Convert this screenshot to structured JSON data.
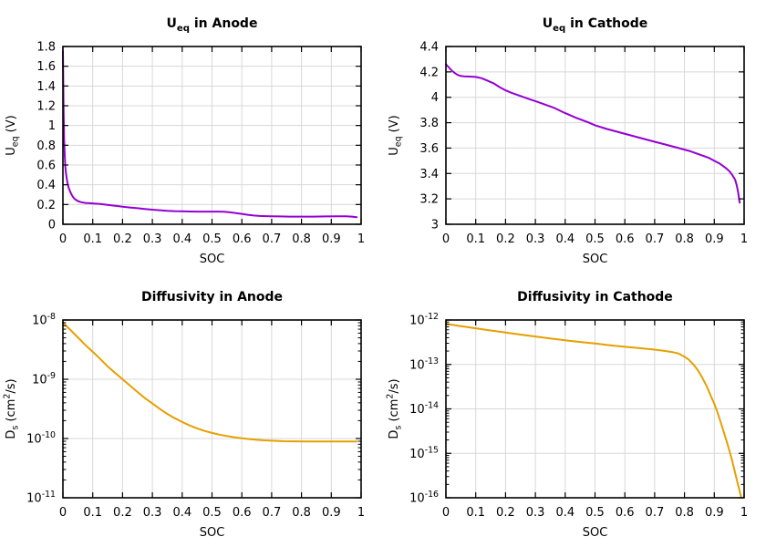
{
  "figure": {
    "background": "#ffffff",
    "grid_color": "#d8d8d8",
    "axis_color": "#000000",
    "text_color": "#000000",
    "ocp_line_color": "#9400D3",
    "diffusivity_line_color": "#E69F00"
  },
  "chart_data": [
    {
      "id": "ueq-anode",
      "type": "line",
      "title": "U_eq in Anode",
      "title_segments": [
        {
          "t": "U"
        },
        {
          "t": "eq",
          "sub": true
        },
        {
          "t": " in Anode"
        }
      ],
      "xlabel": "SOC",
      "ylabel": "U_eq (V)",
      "ylabel_segments": [
        {
          "t": "U"
        },
        {
          "t": "eq",
          "sub": true
        },
        {
          "t": " (V)"
        }
      ],
      "line_color": "#9400D3",
      "y_scale": "linear",
      "grid": true,
      "legend": "none",
      "xlim": [
        0,
        1
      ],
      "ylim": [
        0,
        1.8
      ],
      "x_ticks": [
        "0",
        "0.1",
        "0.2",
        "0.3",
        "0.4",
        "0.5",
        "0.6",
        "0.7",
        "0.8",
        "0.9",
        "1"
      ],
      "y_ticks": [
        "0",
        "0.2",
        "0.4",
        "0.6",
        "0.8",
        "1",
        "1.2",
        "1.4",
        "1.6",
        "1.8"
      ],
      "points": [
        [
          0,
          1.75
        ],
        [
          0.002,
          1.18
        ],
        [
          0.004,
          0.86
        ],
        [
          0.006,
          0.7
        ],
        [
          0.008,
          0.59
        ],
        [
          0.01,
          0.52
        ],
        [
          0.013,
          0.455
        ],
        [
          0.016,
          0.41
        ],
        [
          0.02,
          0.365
        ],
        [
          0.025,
          0.325
        ],
        [
          0.03,
          0.295
        ],
        [
          0.035,
          0.272
        ],
        [
          0.04,
          0.255
        ],
        [
          0.05,
          0.235
        ],
        [
          0.06,
          0.224
        ],
        [
          0.075,
          0.216
        ],
        [
          0.09,
          0.213
        ],
        [
          0.105,
          0.21
        ],
        [
          0.125,
          0.205
        ],
        [
          0.15,
          0.196
        ],
        [
          0.175,
          0.187
        ],
        [
          0.2,
          0.178
        ],
        [
          0.225,
          0.17
        ],
        [
          0.25,
          0.162
        ],
        [
          0.275,
          0.155
        ],
        [
          0.3,
          0.148
        ],
        [
          0.325,
          0.142
        ],
        [
          0.35,
          0.137
        ],
        [
          0.375,
          0.133
        ],
        [
          0.4,
          0.131
        ],
        [
          0.425,
          0.129
        ],
        [
          0.45,
          0.128
        ],
        [
          0.475,
          0.128
        ],
        [
          0.5,
          0.128
        ],
        [
          0.52,
          0.128
        ],
        [
          0.54,
          0.126
        ],
        [
          0.56,
          0.121
        ],
        [
          0.58,
          0.113
        ],
        [
          0.6,
          0.105
        ],
        [
          0.62,
          0.096
        ],
        [
          0.64,
          0.089
        ],
        [
          0.66,
          0.084
        ],
        [
          0.68,
          0.082
        ],
        [
          0.7,
          0.08
        ],
        [
          0.73,
          0.079
        ],
        [
          0.76,
          0.078
        ],
        [
          0.8,
          0.078
        ],
        [
          0.84,
          0.078
        ],
        [
          0.88,
          0.079
        ],
        [
          0.92,
          0.08
        ],
        [
          0.95,
          0.08
        ],
        [
          0.97,
          0.078
        ],
        [
          0.985,
          0.071
        ]
      ]
    },
    {
      "id": "ueq-cathode",
      "type": "line",
      "title": "U_eq in Cathode",
      "title_segments": [
        {
          "t": "U"
        },
        {
          "t": "eq",
          "sub": true
        },
        {
          "t": " in Cathode"
        }
      ],
      "xlabel": "SOC",
      "ylabel": "U_eq (V)",
      "ylabel_segments": [
        {
          "t": "U"
        },
        {
          "t": "eq",
          "sub": true
        },
        {
          "t": " (V)"
        }
      ],
      "line_color": "#9400D3",
      "y_scale": "linear",
      "grid": true,
      "legend": "none",
      "xlim": [
        0,
        1
      ],
      "ylim": [
        3,
        4.4
      ],
      "x_ticks": [
        "0",
        "0.1",
        "0.2",
        "0.3",
        "0.4",
        "0.5",
        "0.6",
        "0.7",
        "0.8",
        "0.9",
        "1"
      ],
      "y_ticks": [
        "3",
        "3.2",
        "3.4",
        "3.6",
        "3.8",
        "4",
        "4.2",
        "4.4"
      ],
      "points": [
        [
          0,
          4.26
        ],
        [
          0.01,
          4.235
        ],
        [
          0.02,
          4.21
        ],
        [
          0.03,
          4.19
        ],
        [
          0.04,
          4.175
        ],
        [
          0.05,
          4.168
        ],
        [
          0.06,
          4.165
        ],
        [
          0.08,
          4.163
        ],
        [
          0.1,
          4.16
        ],
        [
          0.12,
          4.15
        ],
        [
          0.14,
          4.13
        ],
        [
          0.16,
          4.11
        ],
        [
          0.18,
          4.08
        ],
        [
          0.2,
          4.055
        ],
        [
          0.22,
          4.035
        ],
        [
          0.25,
          4.01
        ],
        [
          0.28,
          3.985
        ],
        [
          0.3,
          3.97
        ],
        [
          0.33,
          3.945
        ],
        [
          0.36,
          3.92
        ],
        [
          0.4,
          3.875
        ],
        [
          0.44,
          3.835
        ],
        [
          0.48,
          3.8
        ],
        [
          0.5,
          3.78
        ],
        [
          0.54,
          3.75
        ],
        [
          0.58,
          3.725
        ],
        [
          0.62,
          3.7
        ],
        [
          0.66,
          3.675
        ],
        [
          0.7,
          3.65
        ],
        [
          0.74,
          3.625
        ],
        [
          0.78,
          3.6
        ],
        [
          0.82,
          3.575
        ],
        [
          0.85,
          3.55
        ],
        [
          0.88,
          3.525
        ],
        [
          0.9,
          3.5
        ],
        [
          0.92,
          3.475
        ],
        [
          0.94,
          3.44
        ],
        [
          0.95,
          3.42
        ],
        [
          0.96,
          3.39
        ],
        [
          0.97,
          3.35
        ],
        [
          0.975,
          3.31
        ],
        [
          0.98,
          3.25
        ],
        [
          0.985,
          3.17
        ]
      ]
    },
    {
      "id": "diffusivity-anode",
      "type": "line",
      "title": "Diffusivity in Anode",
      "title_segments": [
        {
          "t": "Diffusivity in Anode"
        }
      ],
      "xlabel": "SOC",
      "ylabel": "D_s (cm^2/s)",
      "ylabel_segments": [
        {
          "t": "D"
        },
        {
          "t": "s",
          "sub": true
        },
        {
          "t": " (cm"
        },
        {
          "t": "2",
          "sup": true
        },
        {
          "t": "/s)"
        }
      ],
      "line_color": "#E69F00",
      "y_scale": "log",
      "grid": true,
      "legend": "none",
      "xlim": [
        0,
        1
      ],
      "ylim": [
        1e-11,
        1e-08
      ],
      "x_ticks": [
        "0",
        "0.1",
        "0.2",
        "0.3",
        "0.4",
        "0.5",
        "0.6",
        "0.7",
        "0.8",
        "0.9",
        "1"
      ],
      "y_exponents": [
        -8,
        -9,
        -10,
        -11
      ],
      "points": [
        [
          0,
          9e-09
        ],
        [
          0.025,
          6.8e-09
        ],
        [
          0.05,
          5.1e-09
        ],
        [
          0.075,
          3.8e-09
        ],
        [
          0.1,
          2.9e-09
        ],
        [
          0.125,
          2.2e-09
        ],
        [
          0.15,
          1.65e-09
        ],
        [
          0.175,
          1.28e-09
        ],
        [
          0.2,
          1e-09
        ],
        [
          0.225,
          7.8e-10
        ],
        [
          0.25,
          6.1e-10
        ],
        [
          0.275,
          4.8e-10
        ],
        [
          0.3,
          3.9e-10
        ],
        [
          0.325,
          3.15e-10
        ],
        [
          0.35,
          2.6e-10
        ],
        [
          0.375,
          2.2e-10
        ],
        [
          0.4,
          1.9e-10
        ],
        [
          0.425,
          1.66e-10
        ],
        [
          0.45,
          1.48e-10
        ],
        [
          0.475,
          1.34e-10
        ],
        [
          0.5,
          1.24e-10
        ],
        [
          0.525,
          1.16e-10
        ],
        [
          0.55,
          1.1e-10
        ],
        [
          0.575,
          1.05e-10
        ],
        [
          0.6,
          1.01e-10
        ],
        [
          0.625,
          9.8e-11
        ],
        [
          0.65,
          9.5e-11
        ],
        [
          0.675,
          9.3e-11
        ],
        [
          0.7,
          9.2e-11
        ],
        [
          0.74,
          9e-11
        ],
        [
          0.78,
          8.95e-11
        ],
        [
          0.82,
          8.9e-11
        ],
        [
          0.86,
          8.9e-11
        ],
        [
          0.9,
          8.9e-11
        ],
        [
          0.94,
          8.9e-11
        ],
        [
          0.985,
          8.9e-11
        ]
      ]
    },
    {
      "id": "diffusivity-cathode",
      "type": "line",
      "title": "Diffusivity in Cathode",
      "title_segments": [
        {
          "t": "Diffusivity in Cathode"
        }
      ],
      "xlabel": "SOC",
      "ylabel": "D_s (cm^2/s)",
      "ylabel_segments": [
        {
          "t": "D"
        },
        {
          "t": "s",
          "sub": true
        },
        {
          "t": " (cm"
        },
        {
          "t": "2",
          "sup": true
        },
        {
          "t": "/s)"
        }
      ],
      "line_color": "#E69F00",
      "y_scale": "log",
      "grid": true,
      "legend": "none",
      "xlim": [
        0,
        1
      ],
      "ylim": [
        1e-16,
        1e-12
      ],
      "x_ticks": [
        "0",
        "0.1",
        "0.2",
        "0.3",
        "0.4",
        "0.5",
        "0.6",
        "0.7",
        "0.8",
        "0.9",
        "1"
      ],
      "y_exponents": [
        -12,
        -13,
        -14,
        -15,
        -16
      ],
      "points": [
        [
          0,
          8.2e-13
        ],
        [
          0.05,
          7.3e-13
        ],
        [
          0.1,
          6.5e-13
        ],
        [
          0.15,
          5.8e-13
        ],
        [
          0.2,
          5.2e-13
        ],
        [
          0.25,
          4.7e-13
        ],
        [
          0.3,
          4.25e-13
        ],
        [
          0.35,
          3.85e-13
        ],
        [
          0.4,
          3.5e-13
        ],
        [
          0.45,
          3.2e-13
        ],
        [
          0.5,
          2.95e-13
        ],
        [
          0.55,
          2.7e-13
        ],
        [
          0.6,
          2.5e-13
        ],
        [
          0.65,
          2.32e-13
        ],
        [
          0.7,
          2.15e-13
        ],
        [
          0.73,
          2.04e-13
        ],
        [
          0.76,
          1.9e-13
        ],
        [
          0.78,
          1.76e-13
        ],
        [
          0.8,
          1.5e-13
        ],
        [
          0.815,
          1.27e-13
        ],
        [
          0.83,
          1e-13
        ],
        [
          0.845,
          7.4e-14
        ],
        [
          0.86,
          5e-14
        ],
        [
          0.875,
          3.2e-14
        ],
        [
          0.89,
          1.85e-14
        ],
        [
          0.9,
          1.3e-14
        ],
        [
          0.91,
          8.6e-15
        ],
        [
          0.92,
          5.4e-15
        ],
        [
          0.93,
          3.3e-15
        ],
        [
          0.94,
          2e-15
        ],
        [
          0.95,
          1.2e-15
        ],
        [
          0.96,
          6.8e-16
        ],
        [
          0.97,
          3.6e-16
        ],
        [
          0.98,
          1.9e-16
        ],
        [
          0.99,
          1.05e-16
        ]
      ]
    }
  ]
}
